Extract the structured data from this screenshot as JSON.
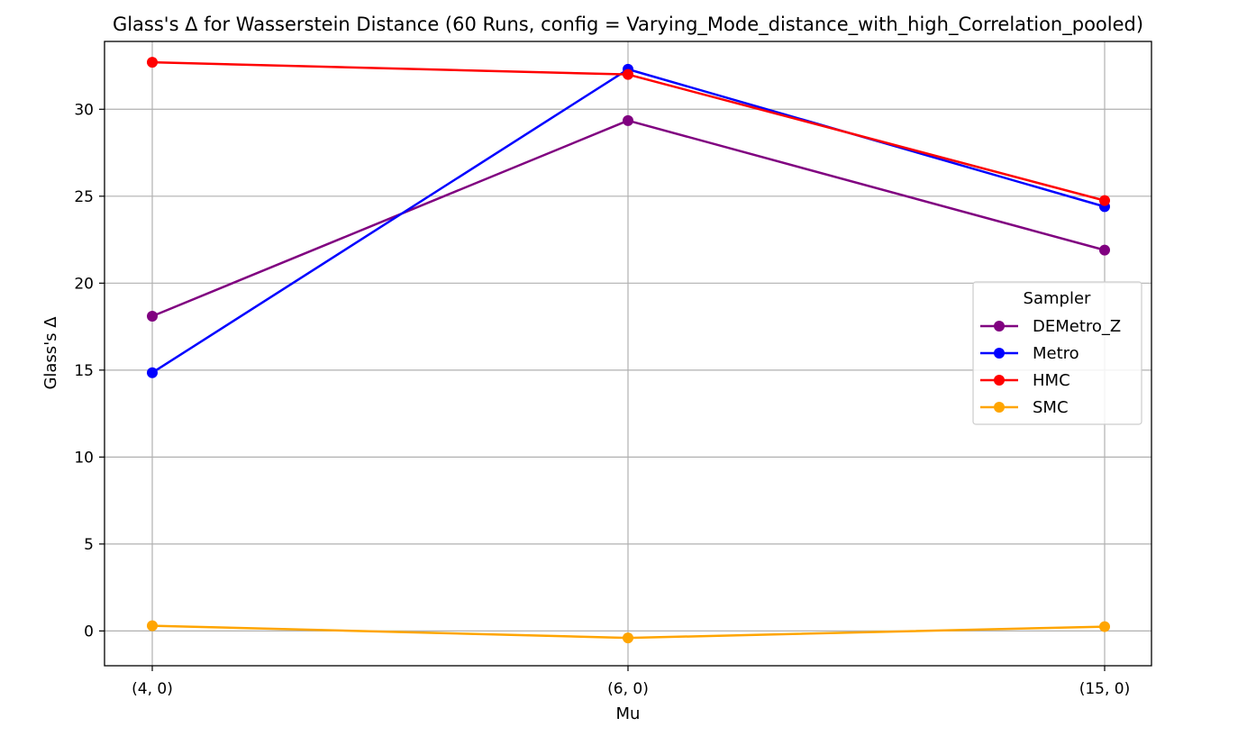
{
  "chart_data": {
    "type": "line",
    "title": "Glass's Δ for Wasserstein Distance (60 Runs, config = Varying_Mode_distance_with_high_Correlation_pooled)",
    "xlabel": "Mu",
    "ylabel": "Glass's Δ",
    "categories": [
      "(4, 0)",
      "(6, 0)",
      "(15, 0)"
    ],
    "ylim": [
      -2,
      33.9
    ],
    "yticks": [
      0,
      5,
      10,
      15,
      20,
      25,
      30
    ],
    "grid": true,
    "legend": {
      "title": "Sampler",
      "placement": "center-right"
    },
    "series": [
      {
        "name": "DEMetro_Z",
        "color": "#800080",
        "values": [
          18.1,
          29.35,
          21.9
        ]
      },
      {
        "name": "Metro",
        "color": "#0000ff",
        "values": [
          14.85,
          32.3,
          24.4
        ]
      },
      {
        "name": "HMC",
        "color": "#ff0000",
        "values": [
          32.7,
          32.0,
          24.75
        ]
      },
      {
        "name": "SMC",
        "color": "#ffa500",
        "values": [
          0.3,
          -0.4,
          0.25
        ]
      }
    ]
  }
}
